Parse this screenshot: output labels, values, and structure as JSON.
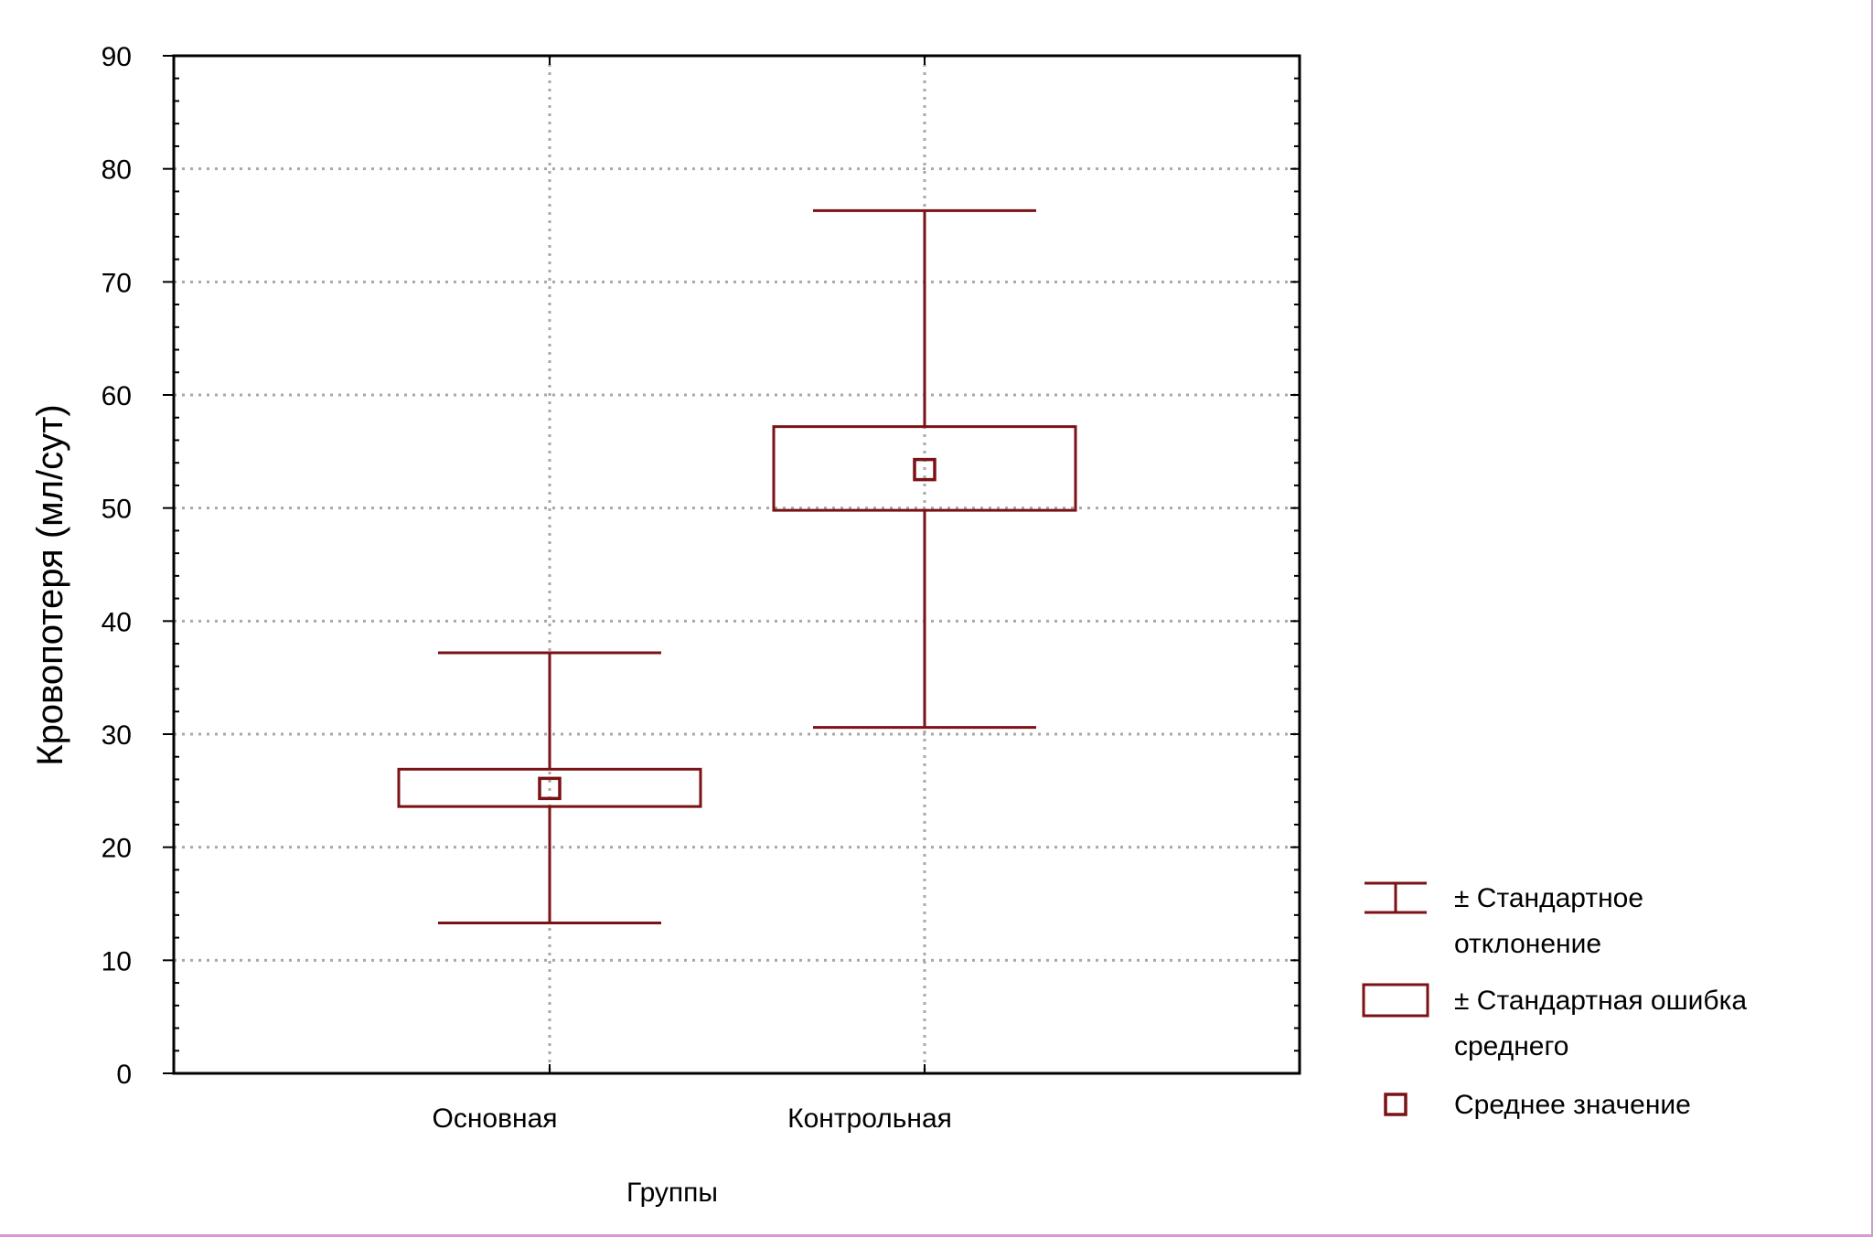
{
  "chart_data": {
    "type": "box",
    "ylabel": "Кровопотеря (мл/сут)",
    "xlabel": "Группы",
    "ylim": [
      0,
      90
    ],
    "yticks": [
      0,
      10,
      20,
      30,
      40,
      50,
      60,
      70,
      80,
      90
    ],
    "grid": true,
    "legend_position": "right",
    "color": "#7a1216",
    "categories": [
      "Основная",
      "Контрольная"
    ],
    "groups": [
      {
        "name": "Основная",
        "mean": 25.2,
        "se_low": 23.6,
        "se_high": 26.9,
        "sd_low": 13.3,
        "sd_high": 37.2
      },
      {
        "name": "Контрольная",
        "mean": 53.4,
        "se_low": 49.8,
        "se_high": 57.2,
        "sd_low": 30.6,
        "sd_high": 76.3
      }
    ],
    "legend": [
      {
        "symbol": "whisker",
        "lines": [
          "± Стандартное",
          "отклонение"
        ]
      },
      {
        "symbol": "box",
        "lines": [
          "± Стандартная ошибка",
          "среднего"
        ]
      },
      {
        "symbol": "mean",
        "lines": [
          "Среднее значение"
        ]
      }
    ]
  }
}
